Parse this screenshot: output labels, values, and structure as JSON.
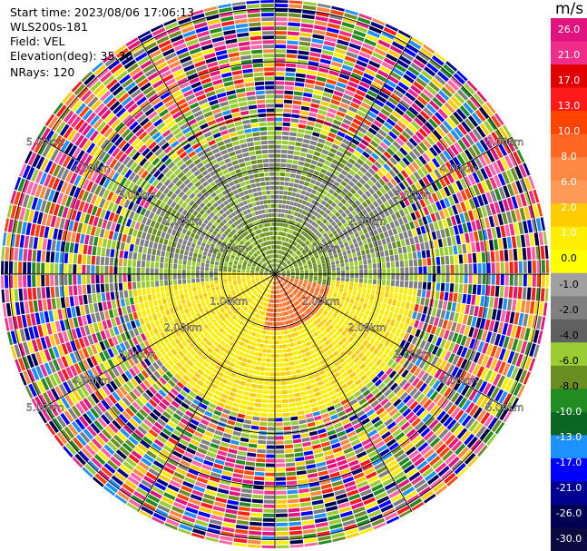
{
  "header": {
    "start_time": "Start time: 2023/08/06 17:06:13",
    "instrument": "WLS200s-181",
    "field": "Field: VEL",
    "elevation": "Elevation(deg): 35.30",
    "nrays": "NRays: 120"
  },
  "chart_data": {
    "type": "heatmap",
    "projection": "polar PPI",
    "field": "VEL",
    "unit": "m/s",
    "range_rings_km": [
      1.0,
      2.0,
      3.0,
      4.0,
      5.0
    ],
    "ring_labels": [
      "1.00km",
      "2.00km",
      "3.00km",
      "4.00km",
      "5.00km"
    ],
    "colorbar": {
      "label": "m/s",
      "ticks": [
        "26.0",
        "21.0",
        "17.0",
        "13.0",
        "10.0",
        "8.0",
        "6.0",
        "2.0",
        "1.0",
        "0.0",
        "-1.0",
        "-2.0",
        "-4.0",
        "-6.0",
        "-8.0",
        "-10.0",
        "-13.0",
        "-17.0",
        "-21.0",
        "-26.0",
        "-30.0"
      ],
      "colors": [
        "#e0137f",
        "#f02e8a",
        "#e00000",
        "#ff1a1a",
        "#ff4400",
        "#ff6622",
        "#ff8844",
        "#ff9955",
        "#ffcc00",
        "#ffee00",
        "#ffff00",
        "#a0a0a0",
        "#808080",
        "#606060",
        "#9acd32",
        "#6b8e23",
        "#228b22",
        "#0b6623",
        "#1e90ff",
        "#0000ff",
        "#000090",
        "#000050",
        "#0a0a40"
      ]
    }
  }
}
